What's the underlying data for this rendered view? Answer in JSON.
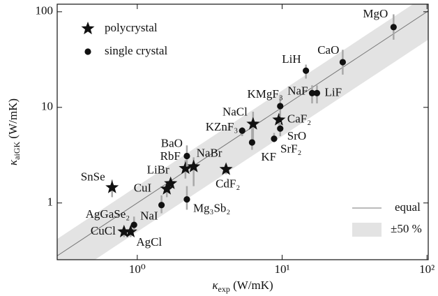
{
  "chart_data": {
    "type": "scatter",
    "log_x": true,
    "log_y": true,
    "xlabel": {
      "symbol": "κ",
      "subscript": "exp",
      "unit": "(W/mK)"
    },
    "ylabel": {
      "symbol": "κ",
      "subscript": "aiGK",
      "unit": "(W/mK)"
    },
    "xlim": [
      0.28,
      102
    ],
    "ylim": [
      0.255,
      120
    ],
    "xticks": [
      {
        "value": 1,
        "label": "10⁰"
      },
      {
        "value": 10,
        "label": "10¹"
      },
      {
        "value": 100,
        "label": "10²"
      }
    ],
    "yticks": [
      1,
      10,
      100
    ],
    "series": [
      {
        "name": "polycrystal",
        "marker": "star",
        "color": "#111111",
        "labels": [
          "CaF₂",
          "NaCl",
          "NaBr",
          "RbF",
          "CdF₂",
          "LiBr",
          "CuI",
          "SnSe",
          "CuCl",
          "AgCl"
        ],
        "x": [
          9.5,
          6.3,
          2.45,
          2.15,
          4.1,
          1.7,
          1.6,
          0.67,
          0.81,
          0.9
        ],
        "values": [
          7.4,
          6.7,
          2.4,
          2.3,
          2.25,
          1.6,
          1.4,
          1.45,
          0.5,
          0.5
        ],
        "err_low": [
          6.5,
          4.3,
          1.5,
          1.8,
          2.0,
          1.4,
          1.15,
          1.15,
          0.44,
          0.44
        ],
        "err_high": [
          8.4,
          9,
          3,
          2.8,
          2.5,
          1.8,
          1.6,
          1.75,
          0.56,
          0.57
        ]
      },
      {
        "name": "single crystal",
        "marker": "circle",
        "color": "#111111",
        "labels": [
          "MgO",
          "CaO",
          "LiH",
          "NaF",
          "LiF",
          "KMgF₃",
          "SrO",
          "SrF₂",
          "KZnF₃",
          "KF",
          "BaO",
          "Mg₃Sb₂",
          "NaI",
          "AgGaSe₂"
        ],
        "x": [
          58.8,
          26.2,
          14.6,
          16.1,
          17.4,
          9.7,
          9.7,
          8.8,
          5.3,
          6.2,
          2.2,
          2.2,
          1.47,
          0.95
        ],
        "values": [
          69,
          29.7,
          24.2,
          14.1,
          14.1,
          10.3,
          6.0,
          4.7,
          5.7,
          4.3,
          3.1,
          1.09,
          0.95,
          0.59
        ],
        "err_low": [
          51,
          22,
          20,
          11,
          11,
          8,
          5,
          4.3,
          5,
          3.6,
          2.4,
          0.85,
          0.78,
          0.52
        ],
        "err_high": [
          94,
          40,
          28,
          17,
          17,
          13,
          7,
          5.4,
          6.2,
          6,
          4,
          1.5,
          1.2,
          0.72
        ]
      }
    ],
    "reference_line": {
      "name": "equal",
      "color": "#777777"
    },
    "band": {
      "name": "±50 %",
      "lower": 0.5,
      "upper": 1.5,
      "color": "#e3e3e3"
    },
    "errorbar_color": "#a8a8a8"
  }
}
